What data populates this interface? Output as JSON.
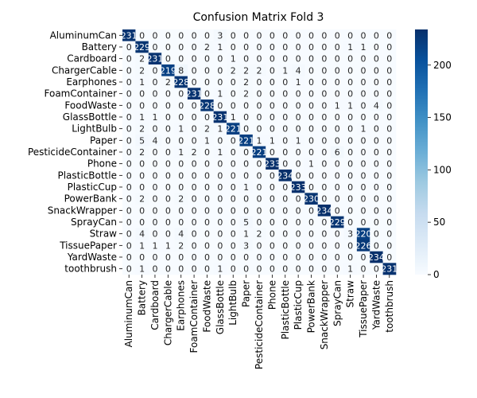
{
  "chart_data": {
    "type": "heatmap",
    "title": "Confusion Matrix Fold 3",
    "xlabel": "",
    "ylabel": "",
    "labels": [
      "AluminumCan",
      "Battery",
      "Cardboard",
      "ChargerCable",
      "Earphones",
      "FoamContainer",
      "FoodWaste",
      "GlassBottle",
      "LightBulb",
      "Paper",
      "PesticideContainer",
      "Phone",
      "PlasticBottle",
      "PlasticCup",
      "PowerBank",
      "SnackWrapper",
      "SprayCan",
      "Straw",
      "TissuePaper",
      "YardWaste",
      "toothbrush"
    ],
    "matrix": [
      [
        231,
        0,
        0,
        0,
        0,
        0,
        0,
        3,
        0,
        0,
        0,
        0,
        0,
        0,
        0,
        0,
        0,
        0,
        0,
        0,
        0
      ],
      [
        0,
        229,
        0,
        0,
        0,
        0,
        2,
        1,
        0,
        0,
        0,
        0,
        0,
        0,
        0,
        0,
        0,
        1,
        1,
        0,
        0
      ],
      [
        0,
        2,
        231,
        0,
        0,
        0,
        0,
        0,
        1,
        0,
        0,
        0,
        0,
        0,
        0,
        0,
        0,
        0,
        0,
        0,
        0
      ],
      [
        0,
        2,
        0,
        219,
        8,
        0,
        0,
        0,
        2,
        2,
        2,
        0,
        1,
        4,
        0,
        0,
        0,
        0,
        0,
        0,
        0
      ],
      [
        0,
        1,
        0,
        2,
        228,
        0,
        0,
        0,
        0,
        2,
        0,
        0,
        0,
        1,
        0,
        0,
        0,
        0,
        0,
        0,
        0
      ],
      [
        0,
        0,
        0,
        0,
        0,
        231,
        0,
        1,
        0,
        2,
        0,
        0,
        0,
        0,
        0,
        0,
        0,
        0,
        0,
        0,
        0
      ],
      [
        0,
        0,
        0,
        0,
        0,
        0,
        228,
        0,
        0,
        0,
        0,
        0,
        0,
        0,
        0,
        0,
        1,
        1,
        0,
        4,
        0
      ],
      [
        0,
        1,
        1,
        0,
        0,
        0,
        0,
        231,
        1,
        0,
        0,
        0,
        0,
        0,
        0,
        0,
        0,
        0,
        0,
        0,
        0
      ],
      [
        0,
        2,
        0,
        0,
        1,
        0,
        2,
        1,
        221,
        0,
        0,
        0,
        0,
        0,
        0,
        0,
        0,
        0,
        1,
        0,
        0
      ],
      [
        0,
        5,
        4,
        0,
        0,
        0,
        1,
        0,
        0,
        221,
        1,
        1,
        0,
        1,
        0,
        0,
        0,
        0,
        0,
        0,
        0
      ],
      [
        0,
        2,
        0,
        0,
        1,
        2,
        0,
        1,
        0,
        0,
        221,
        0,
        0,
        0,
        0,
        0,
        6,
        0,
        0,
        0,
        0
      ],
      [
        0,
        0,
        0,
        0,
        0,
        0,
        0,
        0,
        0,
        0,
        0,
        233,
        0,
        0,
        1,
        0,
        0,
        0,
        0,
        0,
        0
      ],
      [
        0,
        0,
        0,
        0,
        0,
        0,
        0,
        0,
        0,
        0,
        0,
        0,
        234,
        0,
        0,
        0,
        0,
        0,
        0,
        0,
        0
      ],
      [
        0,
        0,
        0,
        0,
        0,
        0,
        0,
        0,
        0,
        1,
        0,
        0,
        0,
        233,
        0,
        0,
        0,
        0,
        0,
        0,
        0
      ],
      [
        0,
        2,
        0,
        0,
        2,
        0,
        0,
        0,
        0,
        0,
        0,
        0,
        0,
        0,
        230,
        0,
        0,
        0,
        0,
        0,
        0
      ],
      [
        0,
        0,
        0,
        0,
        0,
        0,
        0,
        0,
        0,
        0,
        0,
        0,
        0,
        0,
        0,
        234,
        0,
        0,
        0,
        0,
        0
      ],
      [
        0,
        0,
        0,
        0,
        0,
        0,
        0,
        0,
        0,
        5,
        0,
        0,
        0,
        0,
        0,
        0,
        229,
        0,
        0,
        0,
        0
      ],
      [
        0,
        4,
        0,
        0,
        4,
        0,
        0,
        0,
        0,
        1,
        2,
        0,
        0,
        0,
        0,
        0,
        0,
        3,
        220,
        0,
        0
      ],
      [
        0,
        1,
        1,
        1,
        2,
        0,
        0,
        0,
        0,
        3,
        0,
        0,
        0,
        0,
        0,
        0,
        0,
        0,
        226,
        0,
        0
      ],
      [
        0,
        0,
        0,
        0,
        0,
        0,
        0,
        0,
        0,
        0,
        0,
        0,
        0,
        0,
        0,
        0,
        0,
        0,
        0,
        234,
        0
      ],
      [
        0,
        1,
        0,
        0,
        0,
        0,
        0,
        1,
        0,
        0,
        0,
        0,
        0,
        0,
        0,
        0,
        0,
        1,
        0,
        0,
        231
      ]
    ],
    "colorbar": {
      "min": 0,
      "max": 234,
      "ticks": [
        0,
        50,
        100,
        150,
        200
      ]
    },
    "colormap": {
      "low": "#f7fbff",
      "high": "#08306b"
    }
  }
}
